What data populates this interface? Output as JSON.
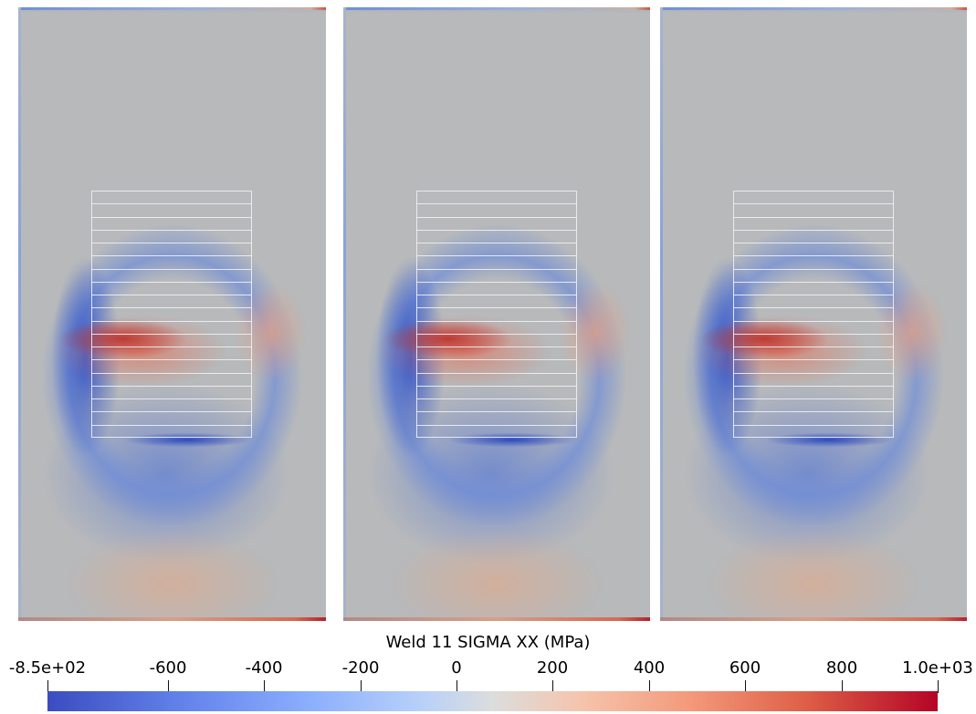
{
  "panels": [
    {
      "id": "vp-0"
    },
    {
      "id": "vp-1"
    },
    {
      "id": "vp-2"
    }
  ],
  "mesh": {
    "layer_count": 19
  },
  "colorbar": {
    "title": "Weld 11 SIGMA XX (MPa)",
    "colormap": "Cool to Warm",
    "range": [
      -850,
      1000
    ],
    "ticks": [
      {
        "value": -850,
        "label": "-8.5e+02"
      },
      {
        "value": -600,
        "label": "-600"
      },
      {
        "value": -400,
        "label": "-400"
      },
      {
        "value": -200,
        "label": "-200"
      },
      {
        "value": 0,
        "label": "0"
      },
      {
        "value": 200,
        "label": "200"
      },
      {
        "value": 400,
        "label": "400"
      },
      {
        "value": 600,
        "label": "600"
      },
      {
        "value": 800,
        "label": "800"
      },
      {
        "value": 1000,
        "label": "1.0e+03"
      }
    ],
    "colors": {
      "low": "#3b4cc0",
      "mid": "#dcdddd",
      "high": "#b40426"
    }
  }
}
